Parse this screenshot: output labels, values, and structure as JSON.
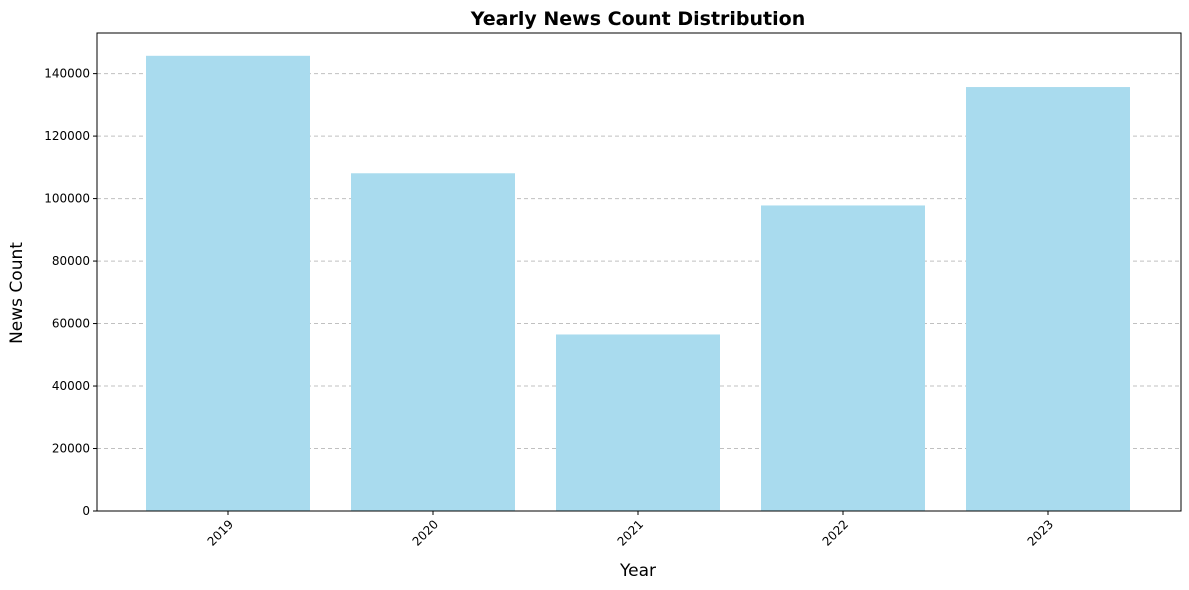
{
  "chart_data": {
    "type": "bar",
    "title": "Yearly News Count Distribution",
    "xlabel": "Year",
    "ylabel": "News Count",
    "categories": [
      "2019",
      "2020",
      "2021",
      "2022",
      "2023"
    ],
    "values": [
      145700,
      108100,
      56500,
      97800,
      135700
    ],
    "ylim": [
      0,
      153000
    ],
    "yticks": [
      0,
      20000,
      40000,
      60000,
      80000,
      100000,
      120000,
      140000
    ],
    "ytick_labels": [
      "0",
      "20000",
      "40000",
      "60000",
      "80000",
      "100000",
      "120000",
      "140000"
    ],
    "grid": "y-axis, dashed",
    "legend": "none",
    "bar_color": "#a9dbee",
    "xtick_rotation": "45 degrees"
  }
}
